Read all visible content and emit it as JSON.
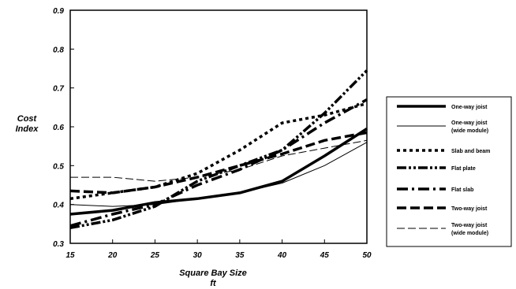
{
  "chart_data": {
    "type": "line",
    "ylabel_lines": [
      "Cost",
      "Index"
    ],
    "xlabel_lines": [
      "Square Bay Size",
      "ft"
    ],
    "xlim": [
      15,
      50
    ],
    "ylim": [
      0.3,
      0.9
    ],
    "x_ticks": [
      "15",
      "20",
      "25",
      "30",
      "35",
      "40",
      "45",
      "50"
    ],
    "y_ticks": [
      "0.3",
      "0.4",
      "0.5",
      "0.6",
      "0.7",
      "0.8",
      "0.9"
    ],
    "grid": false,
    "legend_position": "right",
    "x": [
      15,
      20,
      25,
      30,
      35,
      40,
      45,
      50
    ],
    "series": [
      {
        "name": "One-way joist",
        "name_lines": [
          "One-way joist"
        ],
        "values": [
          0.375,
          0.385,
          0.405,
          0.415,
          0.43,
          0.46,
          0.525,
          0.595
        ]
      },
      {
        "name": "One-way joist (wide module)",
        "name_lines": [
          "One-way joist",
          "(wide module)"
        ],
        "values": [
          0.4,
          0.395,
          0.4,
          0.415,
          0.43,
          0.455,
          0.5,
          0.56
        ]
      },
      {
        "name": "Slab and beam",
        "name_lines": [
          "Slab and beam"
        ],
        "values": [
          0.415,
          0.43,
          0.445,
          0.48,
          0.54,
          0.61,
          0.63,
          0.66
        ]
      },
      {
        "name": "Flat plate",
        "name_lines": [
          "Flat plate"
        ],
        "values": [
          0.34,
          0.36,
          0.395,
          0.46,
          0.5,
          0.54,
          0.635,
          0.745
        ]
      },
      {
        "name": "Flat slab",
        "name_lines": [
          "Flat slab"
        ],
        "values": [
          0.345,
          0.375,
          0.4,
          0.45,
          0.49,
          0.54,
          0.61,
          0.67
        ]
      },
      {
        "name": "Two-way joist",
        "name_lines": [
          "Two-way joist"
        ],
        "values": [
          0.435,
          0.43,
          0.445,
          0.47,
          0.5,
          0.53,
          0.565,
          0.585
        ]
      },
      {
        "name": "Two-way joist (wide module)",
        "name_lines": [
          "Two-way joist",
          "(wide module)"
        ],
        "values": [
          0.47,
          0.47,
          0.46,
          0.47,
          0.49,
          0.525,
          0.545,
          0.565
        ]
      }
    ]
  }
}
